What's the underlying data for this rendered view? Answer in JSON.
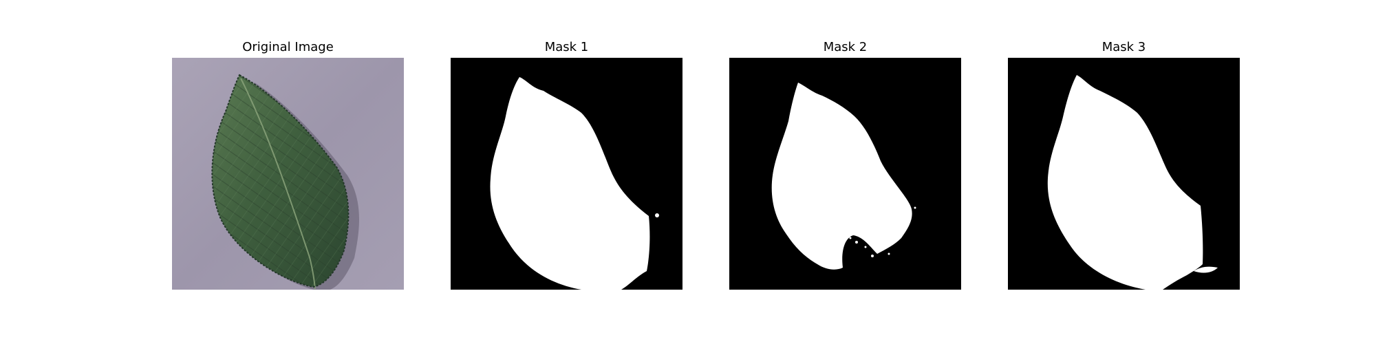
{
  "figure": {
    "panels": [
      {
        "title": "Original Image"
      },
      {
        "title": "Mask 1"
      },
      {
        "title": "Mask 2"
      },
      {
        "title": "Mask 3"
      }
    ]
  },
  "colors": {
    "background": "#ffffff",
    "mask_background": "#000000",
    "mask_foreground": "#ffffff",
    "leaf_green": "#3f5f3e",
    "surface_lavender": "#a69fb4"
  }
}
